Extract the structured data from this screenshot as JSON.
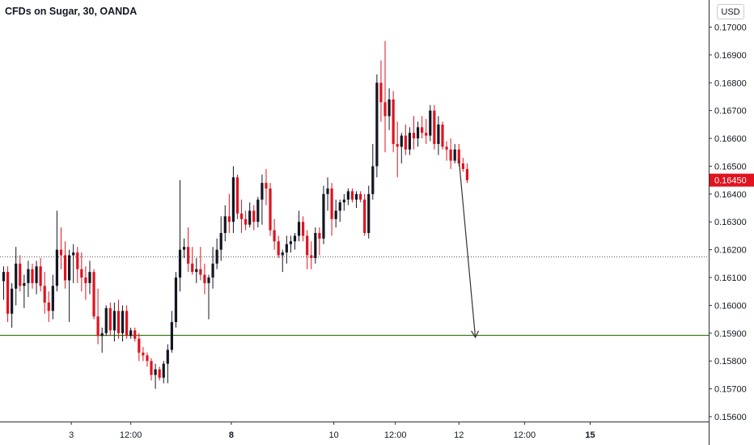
{
  "header": {
    "title": "CFDs on Sugar, 30, OANDA",
    "currency": "USD"
  },
  "colors": {
    "up": "#131722",
    "down": "#e0131f",
    "last_price_bg": "#e0131f",
    "support_line": "#3d7a1a",
    "resistance_line": "#555555",
    "axis_text": "#131722"
  },
  "chart_data": {
    "type": "candlestick",
    "title": "CFDs on Sugar, 30, OANDA",
    "y_ticks": [
      "0.17000",
      "0.16900",
      "0.16800",
      "0.16700",
      "0.16600",
      "0.16500",
      "0.16400",
      "0.16300",
      "0.16200",
      "0.16100",
      "0.16000",
      "0.15900",
      "0.15800",
      "0.15700",
      "0.15600"
    ],
    "y_range": [
      0.15565,
      0.17045
    ],
    "x_labels": [
      {
        "label": "3",
        "idx": 16.5,
        "bold": false
      },
      {
        "label": "12:00",
        "idx": 31,
        "bold": false
      },
      {
        "label": "8",
        "idx": 55.5,
        "bold": true
      },
      {
        "label": "10",
        "idx": 80.5,
        "bold": false
      },
      {
        "label": "12:00",
        "idx": 95.5,
        "bold": false
      },
      {
        "label": "12",
        "idx": 111,
        "bold": false
      },
      {
        "label": "12:00",
        "idx": 127,
        "bold": false
      },
      {
        "label": "15",
        "idx": 143,
        "bold": true
      }
    ],
    "last_price": "0.16450",
    "horizontal_lines": [
      {
        "name": "resistance",
        "value": 0.16177,
        "style": "dotted"
      },
      {
        "name": "support",
        "value": 0.15893,
        "style": "solid"
      }
    ],
    "arrow": {
      "from": {
        "idx": 111.0,
        "value": 0.16525
      },
      "to": {
        "idx": 115.0,
        "value": 0.15885
      }
    },
    "candles": [
      [
        0.16087,
        0.1614,
        0.1602,
        0.1612
      ],
      [
        0.1612,
        0.1614,
        0.1594,
        0.1597
      ],
      [
        0.1597,
        0.1608,
        0.1592,
        0.1606
      ],
      [
        0.1606,
        0.1621,
        0.16,
        0.1615
      ],
      [
        0.1615,
        0.1618,
        0.1605,
        0.1607
      ],
      [
        0.1607,
        0.1611,
        0.1599,
        0.1608
      ],
      [
        0.1608,
        0.1616,
        0.1603,
        0.1613
      ],
      [
        0.1613,
        0.1615,
        0.1606,
        0.1608
      ],
      [
        0.1608,
        0.1616,
        0.1604,
        0.1614
      ],
      [
        0.1614,
        0.1617,
        0.1605,
        0.1607
      ],
      [
        0.1607,
        0.1612,
        0.1597,
        0.1601
      ],
      [
        0.1601,
        0.1605,
        0.1594,
        0.1598
      ],
      [
        0.1598,
        0.1611,
        0.1595,
        0.1607
      ],
      [
        0.1607,
        0.1634,
        0.1605,
        0.162
      ],
      [
        0.162,
        0.1628,
        0.1613,
        0.1618
      ],
      [
        0.1618,
        0.1623,
        0.1606,
        0.1609
      ],
      [
        0.1609,
        0.162,
        0.1594,
        0.1618
      ],
      [
        0.1618,
        0.1622,
        0.1608,
        0.1619
      ],
      [
        0.1619,
        0.1621,
        0.1608,
        0.1613
      ],
      [
        0.1613,
        0.1619,
        0.1605,
        0.161
      ],
      [
        0.161,
        0.1614,
        0.1602,
        0.1608
      ],
      [
        0.1608,
        0.1616,
        0.1604,
        0.1612
      ],
      [
        0.1612,
        0.1613,
        0.1595,
        0.1596
      ],
      [
        0.1596,
        0.1606,
        0.1586,
        0.1589
      ],
      [
        0.1589,
        0.1592,
        0.1583,
        0.159
      ],
      [
        0.159,
        0.16,
        0.1589,
        0.1599
      ],
      [
        0.1599,
        0.1601,
        0.1589,
        0.1591
      ],
      [
        0.1591,
        0.1601,
        0.1587,
        0.1598
      ],
      [
        0.1598,
        0.1602,
        0.1588,
        0.159
      ],
      [
        0.159,
        0.16,
        0.1587,
        0.1598
      ],
      [
        0.1598,
        0.16,
        0.1588,
        0.1589
      ],
      [
        0.1589,
        0.1592,
        0.1588,
        0.1591
      ],
      [
        0.1591,
        0.1592,
        0.1587,
        0.1588
      ],
      [
        0.1588,
        0.159,
        0.158,
        0.1583
      ],
      [
        0.1583,
        0.1585,
        0.158,
        0.1582
      ],
      [
        0.1582,
        0.1583,
        0.1578,
        0.158
      ],
      [
        0.158,
        0.1581,
        0.1573,
        0.1575
      ],
      [
        0.1575,
        0.1579,
        0.157,
        0.1577
      ],
      [
        0.1577,
        0.1578,
        0.1573,
        0.1574
      ],
      [
        0.1574,
        0.158,
        0.1572,
        0.1579
      ],
      [
        0.1579,
        0.1586,
        0.1572,
        0.1584
      ],
      [
        0.1584,
        0.1598,
        0.1583,
        0.1594
      ],
      [
        0.1594,
        0.1612,
        0.1592,
        0.161
      ],
      [
        0.161,
        0.1645,
        0.1605,
        0.162
      ],
      [
        0.162,
        0.1624,
        0.1617,
        0.1621
      ],
      [
        0.1621,
        0.1628,
        0.1612,
        0.1615
      ],
      [
        0.1615,
        0.1621,
        0.1611,
        0.1612
      ],
      [
        0.1612,
        0.1617,
        0.1608,
        0.1613
      ],
      [
        0.1613,
        0.1621,
        0.1609,
        0.1611
      ],
      [
        0.1611,
        0.1615,
        0.1604,
        0.1608
      ],
      [
        0.1608,
        0.1611,
        0.1595,
        0.161
      ],
      [
        0.161,
        0.1621,
        0.1606,
        0.1615
      ],
      [
        0.1615,
        0.1624,
        0.1613,
        0.162
      ],
      [
        0.162,
        0.1632,
        0.1616,
        0.1626
      ],
      [
        0.1626,
        0.1636,
        0.1623,
        0.1632
      ],
      [
        0.1632,
        0.164,
        0.1626,
        0.163
      ],
      [
        0.163,
        0.165,
        0.1626,
        0.1646
      ],
      [
        0.1646,
        0.1647,
        0.1631,
        0.1633
      ],
      [
        0.1633,
        0.1638,
        0.1626,
        0.1631
      ],
      [
        0.1631,
        0.1634,
        0.1627,
        0.1629
      ],
      [
        0.1629,
        0.1637,
        0.1628,
        0.1634
      ],
      [
        0.1634,
        0.1636,
        0.1627,
        0.163
      ],
      [
        0.163,
        0.1639,
        0.1628,
        0.1638
      ],
      [
        0.1638,
        0.1647,
        0.1629,
        0.1644
      ],
      [
        0.1644,
        0.1649,
        0.1636,
        0.1642
      ],
      [
        0.1642,
        0.1644,
        0.1625,
        0.1627
      ],
      [
        0.1627,
        0.1631,
        0.162,
        0.1623
      ],
      [
        0.1623,
        0.1625,
        0.1617,
        0.1618
      ],
      [
        0.1618,
        0.162,
        0.1612,
        0.1619
      ],
      [
        0.1619,
        0.1625,
        0.1615,
        0.1622
      ],
      [
        0.1622,
        0.1625,
        0.1619,
        0.1623
      ],
      [
        0.1623,
        0.1626,
        0.162,
        0.1625
      ],
      [
        0.1625,
        0.1634,
        0.1623,
        0.163
      ],
      [
        0.163,
        0.1632,
        0.1623,
        0.1625
      ],
      [
        0.1625,
        0.1627,
        0.1613,
        0.1618
      ],
      [
        0.1618,
        0.1623,
        0.1613,
        0.1617
      ],
      [
        0.1617,
        0.1628,
        0.1615,
        0.1626
      ],
      [
        0.1626,
        0.1628,
        0.1618,
        0.1624
      ],
      [
        0.1624,
        0.1643,
        0.1622,
        0.164
      ],
      [
        0.164,
        0.1646,
        0.1634,
        0.1642
      ],
      [
        0.1642,
        0.1644,
        0.1625,
        0.1631
      ],
      [
        0.1631,
        0.1638,
        0.1628,
        0.1634
      ],
      [
        0.1634,
        0.1638,
        0.163,
        0.1637
      ],
      [
        0.1637,
        0.164,
        0.1634,
        0.1638
      ],
      [
        0.1638,
        0.1642,
        0.1636,
        0.1641
      ],
      [
        0.1641,
        0.1642,
        0.1637,
        0.1638
      ],
      [
        0.1638,
        0.1641,
        0.1635,
        0.164
      ],
      [
        0.164,
        0.1641,
        0.1637,
        0.1638
      ],
      [
        0.1638,
        0.164,
        0.1625,
        0.1626
      ],
      [
        0.1626,
        0.1643,
        0.1624,
        0.164
      ],
      [
        0.164,
        0.1658,
        0.1638,
        0.165
      ],
      [
        0.165,
        0.1683,
        0.1646,
        0.168
      ],
      [
        0.168,
        0.1688,
        0.1666,
        0.1673
      ],
      [
        0.1673,
        0.1695,
        0.1655,
        0.1668
      ],
      [
        0.1668,
        0.1678,
        0.1663,
        0.1674
      ],
      [
        0.1674,
        0.1677,
        0.1655,
        0.1658
      ],
      [
        0.1658,
        0.1666,
        0.1646,
        0.1657
      ],
      [
        0.1657,
        0.1662,
        0.1651,
        0.1661
      ],
      [
        0.1661,
        0.1665,
        0.1654,
        0.1656
      ],
      [
        0.1656,
        0.1664,
        0.1654,
        0.1662
      ],
      [
        0.1662,
        0.1668,
        0.1656,
        0.166
      ],
      [
        0.166,
        0.1666,
        0.1657,
        0.1664
      ],
      [
        0.1664,
        0.1668,
        0.166,
        0.1662
      ],
      [
        0.1662,
        0.1667,
        0.1658,
        0.1661
      ],
      [
        0.1661,
        0.1672,
        0.1659,
        0.167
      ],
      [
        0.167,
        0.1672,
        0.1656,
        0.1658
      ],
      [
        0.1658,
        0.1668,
        0.1654,
        0.1665
      ],
      [
        0.1665,
        0.1666,
        0.1656,
        0.1657
      ],
      [
        0.1657,
        0.1659,
        0.1652,
        0.1656
      ],
      [
        0.1656,
        0.166,
        0.1649,
        0.1652
      ],
      [
        0.1652,
        0.1658,
        0.1651,
        0.1656
      ],
      [
        0.1656,
        0.1658,
        0.165,
        0.1651
      ],
      [
        0.1651,
        0.1653,
        0.1648,
        0.1649
      ],
      [
        0.1649,
        0.1651,
        0.1644,
        0.1645
      ]
    ]
  }
}
